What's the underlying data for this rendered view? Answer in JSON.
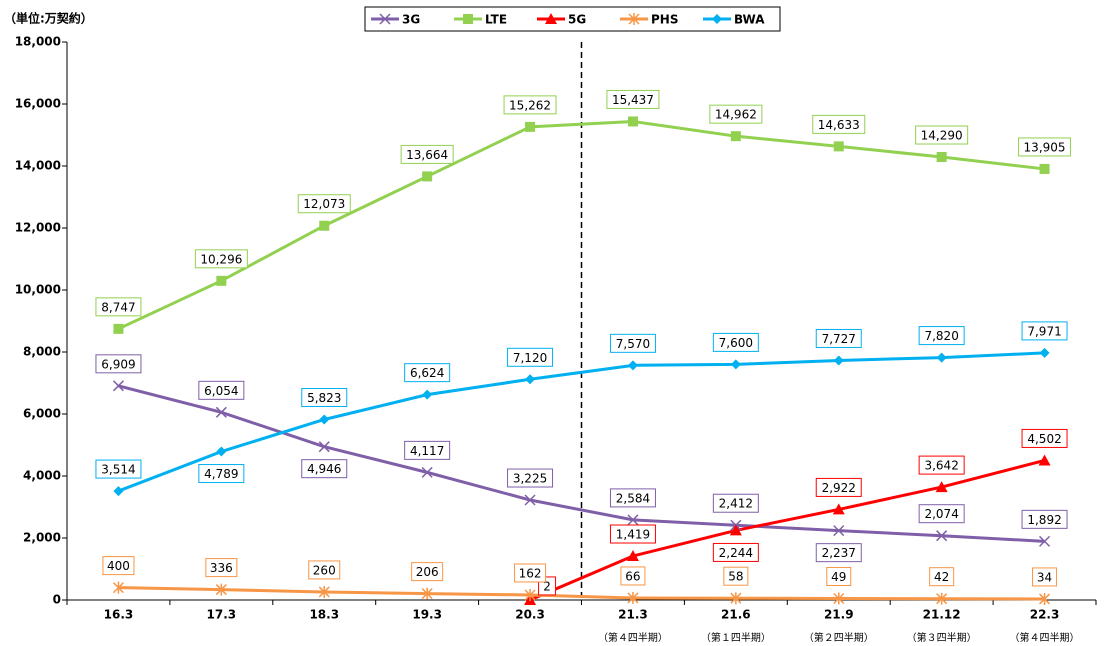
{
  "chart_data": {
    "type": "line",
    "unit_label": "（単位:万契約）",
    "categories": [
      "16.3",
      "17.3",
      "18.3",
      "19.3",
      "20.3",
      "21.3",
      "21.6",
      "21.9",
      "21.12",
      "22.3"
    ],
    "category_sublabels": [
      null,
      null,
      null,
      null,
      null,
      "（第４四半期）",
      "（第１四半期）",
      "（第２四半期）",
      "（第３四半期）",
      "（第４四半期）"
    ],
    "ylim": [
      0,
      18000
    ],
    "yticks": [
      0,
      {
        "value": 2000,
        "label": "2,000"
      },
      {
        "value": 4000,
        "label": "4,000"
      },
      {
        "value": 6000,
        "label": "6,000"
      },
      {
        "value": 8000,
        "label": "8,000"
      },
      {
        "value": 10000,
        "label": "10,000"
      },
      {
        "value": 12000,
        "label": "12,000"
      },
      {
        "value": 14000,
        "label": "14,000"
      },
      {
        "value": 16000,
        "label": "16,000"
      },
      {
        "value": 18000,
        "label": "18,000"
      }
    ],
    "legend": "top",
    "series": [
      {
        "name": "3G",
        "color": "#7f5fa8",
        "marker": "x",
        "values": [
          6909,
          6054,
          4946,
          4117,
          3225,
          2584,
          2412,
          2237,
          2074,
          1892
        ],
        "value_labels": [
          "6,909",
          "6,054",
          "4,946",
          "4,117",
          "3,225",
          "2,584",
          "2,412",
          "2,237",
          "2,074",
          "1,892"
        ]
      },
      {
        "name": "LTE",
        "color": "#92d050",
        "marker": "square",
        "values": [
          8747,
          10296,
          12073,
          13664,
          15262,
          15437,
          14962,
          14633,
          14290,
          13905
        ],
        "value_labels": [
          "8,747",
          "10,296",
          "12,073",
          "13,664",
          "15,262",
          "15,437",
          "14,962",
          "14,633",
          "14,290",
          "13,905"
        ]
      },
      {
        "name": "5G",
        "color": "#ff0000",
        "marker": "triangle",
        "values": [
          null,
          null,
          null,
          null,
          2,
          1419,
          2244,
          2922,
          3642,
          4502
        ],
        "value_labels": [
          null,
          null,
          null,
          null,
          "2",
          "1,419",
          "2,244",
          "2,922",
          "3,642",
          "4,502"
        ]
      },
      {
        "name": "PHS",
        "color": "#f79646",
        "marker": "star",
        "values": [
          400,
          336,
          260,
          206,
          162,
          66,
          58,
          49,
          42,
          34
        ],
        "value_labels": [
          "400",
          "336",
          "260",
          "206",
          "162",
          "66",
          "58",
          "49",
          "42",
          "34"
        ]
      },
      {
        "name": "BWA",
        "color": "#00b0f0",
        "marker": "diamond",
        "values": [
          3514,
          4789,
          5823,
          6624,
          7120,
          7570,
          7600,
          7727,
          7820,
          7971
        ],
        "value_labels": [
          "3,514",
          "4,789",
          "5,823",
          "6,624",
          "7,120",
          "7,570",
          "7,600",
          "7,727",
          "7,820",
          "7,971"
        ]
      }
    ]
  }
}
